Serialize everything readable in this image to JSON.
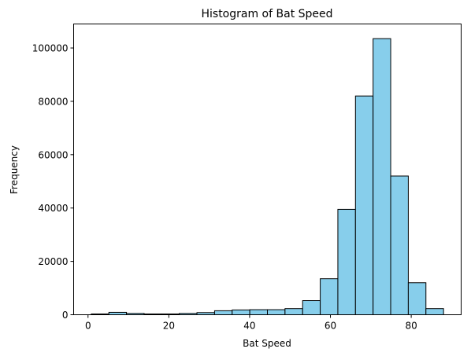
{
  "chart_data": {
    "type": "bar",
    "title": "Histogram of Bat Speed",
    "xlabel": "Bat Speed",
    "ylabel": "Frequency",
    "bin_edges": [
      0.8,
      5.16,
      9.52,
      13.88,
      18.24,
      22.6,
      26.96,
      31.32,
      35.68,
      40.04,
      44.4,
      48.76,
      53.12,
      57.48,
      61.84,
      66.2,
      70.56,
      74.92,
      79.28,
      83.64,
      88.0
    ],
    "values": [
      300,
      900,
      500,
      300,
      300,
      500,
      800,
      1500,
      1800,
      1900,
      1900,
      2300,
      5300,
      13500,
      39500,
      82000,
      103500,
      52000,
      12000,
      2300
    ],
    "xlim": [
      -3.56,
      92.36
    ],
    "ylim": [
      0,
      109000
    ],
    "xticks": [
      0,
      20,
      40,
      60,
      80
    ],
    "xtick_labels": [
      "0",
      "20",
      "40",
      "60",
      "80"
    ],
    "yticks": [
      0,
      20000,
      40000,
      60000,
      80000,
      100000
    ],
    "ytick_labels": [
      "0",
      "20000",
      "40000",
      "60000",
      "80000",
      "100000"
    ],
    "grid": false,
    "colors": {
      "bar_fill": "#87ceeb",
      "bar_edge": "#000000"
    }
  }
}
